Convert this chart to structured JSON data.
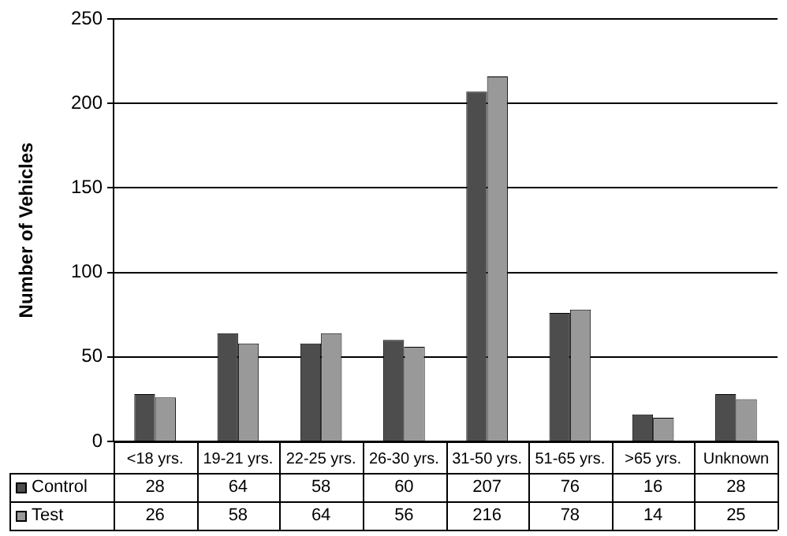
{
  "chart_data": {
    "type": "bar",
    "ylabel": "Number of Vehicles",
    "categories": [
      "<18 yrs.",
      "19-21 yrs.",
      "22-25 yrs.",
      "26-30 yrs.",
      "31-50 yrs.",
      "51-65 yrs.",
      ">65 yrs.",
      "Unknown"
    ],
    "series": [
      {
        "name": "Control",
        "color": "#4d4d4d",
        "values": [
          28,
          64,
          58,
          60,
          207,
          76,
          16,
          28
        ]
      },
      {
        "name": "Test",
        "color": "#999999",
        "values": [
          26,
          58,
          64,
          56,
          216,
          78,
          14,
          25
        ]
      }
    ],
    "ylim": [
      0,
      250
    ],
    "yticks": [
      0,
      50,
      100,
      150,
      200,
      250
    ],
    "grid": "y",
    "legend": "bottom",
    "data_labels": true
  }
}
